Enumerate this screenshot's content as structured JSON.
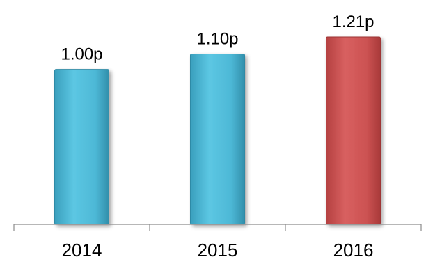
{
  "chart_data": {
    "type": "bar",
    "categories": [
      "2014",
      "2015",
      "2016"
    ],
    "values": [
      1.0,
      1.1,
      1.21
    ],
    "data_labels": [
      "1.00p",
      "1.10p",
      "1.21p"
    ],
    "unit": "p",
    "title": "",
    "xlabel": "",
    "ylabel": "",
    "ylim": [
      0,
      1.21
    ],
    "grid": false,
    "legend": "none",
    "colors": [
      "#4db8d6",
      "#4db8d6",
      "#cc5252"
    ]
  }
}
